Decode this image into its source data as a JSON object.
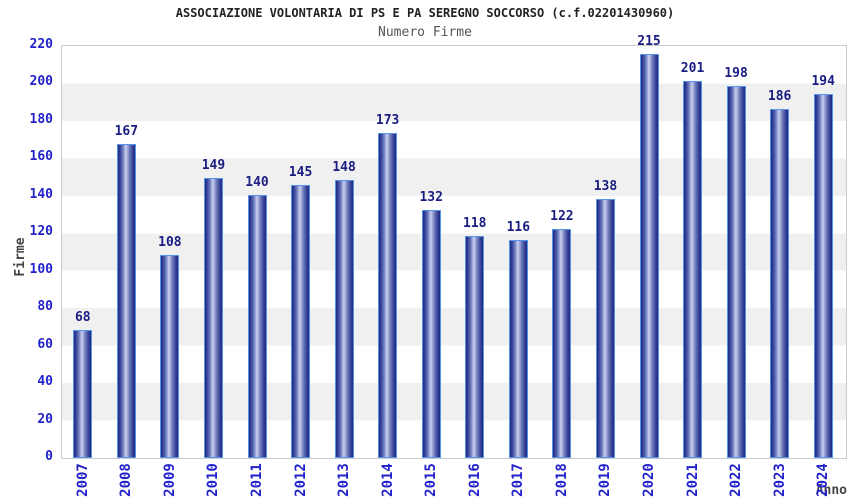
{
  "chart_data": {
    "type": "bar",
    "title": "ASSOCIAZIONE VOLONTARIA DI PS E PA SEREGNO SOCCORSO (c.f.02201430960)",
    "subtitle": "Numero Firme",
    "xlabel": "Anno",
    "ylabel": "Firme",
    "categories": [
      "2007",
      "2008",
      "2009",
      "2010",
      "2011",
      "2012",
      "2013",
      "2014",
      "2015",
      "2016",
      "2017",
      "2018",
      "2019",
      "2020",
      "2021",
      "2022",
      "2023",
      "2024"
    ],
    "values": [
      68,
      167,
      108,
      149,
      140,
      145,
      148,
      173,
      132,
      118,
      116,
      122,
      138,
      215,
      201,
      198,
      186,
      194
    ],
    "ylim": [
      0,
      220
    ],
    "yticks": [
      0,
      20,
      40,
      60,
      80,
      100,
      120,
      140,
      160,
      180,
      200,
      220
    ],
    "grid": "alternating-horizontal-bands",
    "legend_position": "none",
    "colors": {
      "bar_edge_dark": "#1f2a7e",
      "bar_highlight": "#c9cfec",
      "bar_border": "#5794e8",
      "tick_label": "#2222cc",
      "value_label": "#191c80",
      "axis_title": "#444444",
      "title": "#222222",
      "subtitle": "#555555",
      "band_gray": "#f0f0f0",
      "plot_border": "#cccccc",
      "background": "#ffffff"
    }
  }
}
